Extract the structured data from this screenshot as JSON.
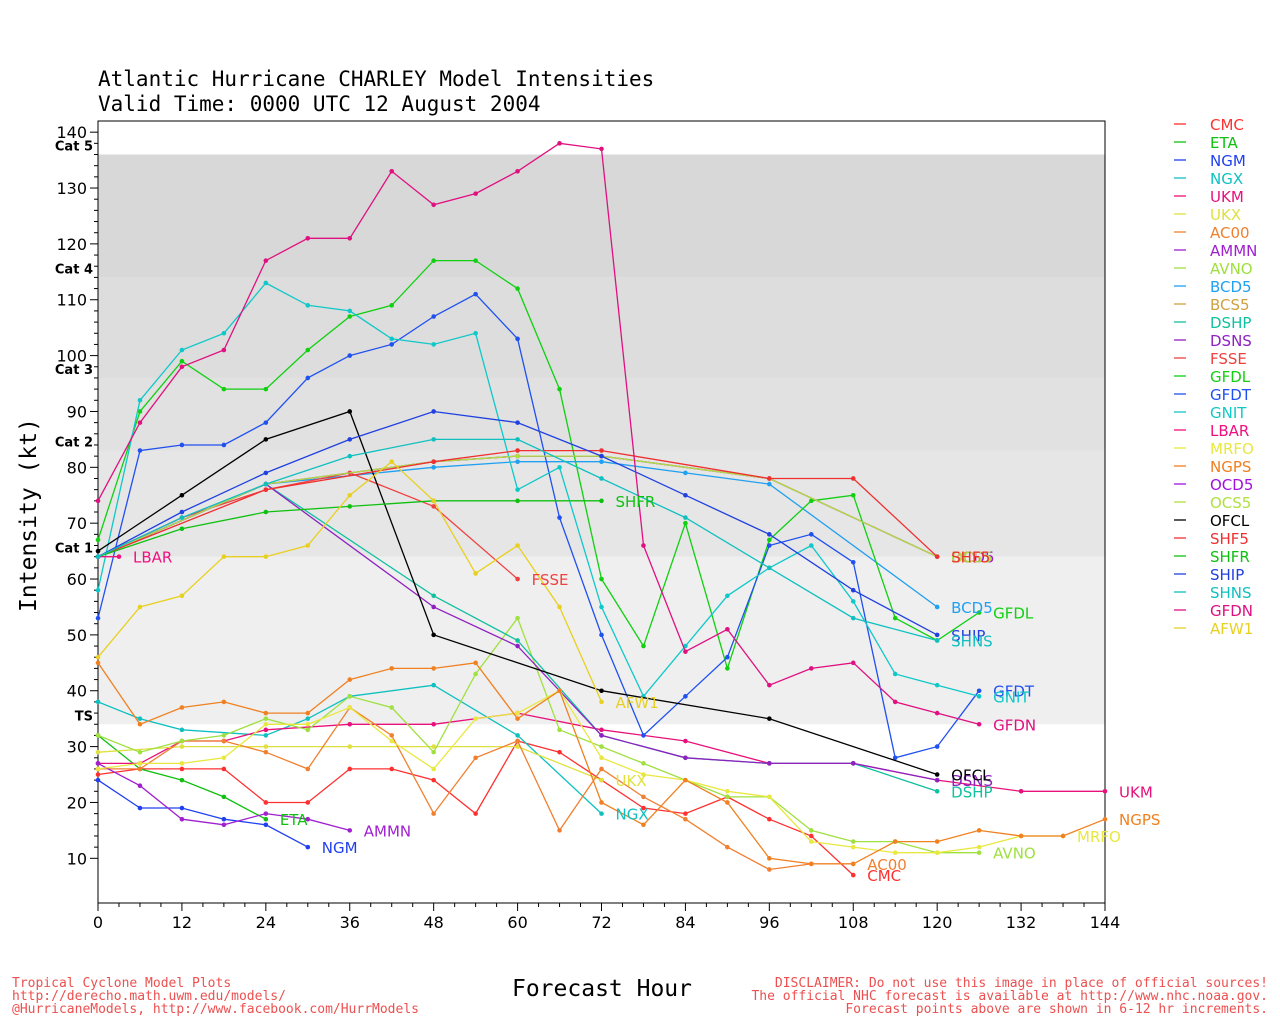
{
  "chart_data": {
    "type": "line",
    "title": "Atlantic Hurricane CHARLEY Model Intensities",
    "subtitle": "Valid Time: 0000 UTC 12 August 2004",
    "xlabel": "Forecast Hour",
    "ylabel": "Intensity (kt)",
    "xlim": [
      0,
      144
    ],
    "ylim": [
      2,
      142
    ],
    "x_ticks": [
      "0",
      "12",
      "24",
      "36",
      "48",
      "60",
      "72",
      "84",
      "96",
      "108",
      "120",
      "132",
      "144"
    ],
    "y_ticks": [
      "10",
      "20",
      "30",
      "40",
      "50",
      "60",
      "70",
      "80",
      "90",
      "100",
      "110",
      "120",
      "130",
      "140"
    ],
    "category_bands": [
      {
        "label": "TS",
        "from": 34,
        "to": 64,
        "color": "#efefef"
      },
      {
        "label": "Cat 1",
        "from": 64,
        "to": 83,
        "color": "#e6e6e6"
      },
      {
        "label": "Cat 2",
        "from": 83,
        "to": 96,
        "color": "#e1e1e1"
      },
      {
        "label": "Cat 3",
        "from": 96,
        "to": 114,
        "color": "#dddddd"
      },
      {
        "label": "Cat 4",
        "from": 114,
        "to": 136,
        "color": "#d8d8d8"
      },
      {
        "label": "Cat 5",
        "from": 136,
        "to": 142,
        "color": "#ffffff"
      }
    ],
    "legend_position": "right",
    "series": [
      {
        "name": "CMC",
        "color": "#ff3030",
        "x": [
          0,
          6,
          12,
          18,
          24,
          30,
          36,
          42,
          48,
          54,
          60,
          66,
          72,
          78,
          84,
          90,
          96,
          102,
          108
        ],
        "y": [
          25,
          26,
          26,
          26,
          20,
          20,
          26,
          26,
          24,
          18,
          31,
          29,
          24,
          19,
          18,
          21,
          17,
          14,
          7
        ],
        "end_label": "CMC"
      },
      {
        "name": "ETA",
        "color": "#10c010",
        "x": [
          0,
          6,
          12,
          18,
          24
        ],
        "y": [
          32,
          26,
          24,
          21,
          17
        ],
        "end_label": "ETA"
      },
      {
        "name": "NGM",
        "color": "#2040f0",
        "x": [
          0,
          6,
          12,
          18,
          24,
          30
        ],
        "y": [
          24,
          19,
          19,
          17,
          16,
          12
        ],
        "end_label": "NGM"
      },
      {
        "name": "NGX",
        "color": "#10c0c0",
        "x": [
          0,
          6,
          12,
          24,
          30,
          36,
          48,
          60,
          72
        ],
        "y": [
          38,
          35,
          33,
          32,
          35,
          39,
          41,
          32,
          18
        ],
        "end_label": "NGX"
      },
      {
        "name": "UKM",
        "color": "#e8107a",
        "x": [
          0,
          6,
          12,
          18,
          24,
          36,
          48,
          60,
          72,
          84,
          96,
          108,
          120,
          132,
          144
        ],
        "y": [
          27,
          27,
          31,
          31,
          33,
          34,
          34,
          36,
          33,
          31,
          27,
          27,
          24,
          22,
          22
        ],
        "end_label": "UKM"
      },
      {
        "name": "UKX",
        "color": "#e0e040",
        "x": [
          0,
          12,
          24,
          36,
          48,
          60,
          72
        ],
        "y": [
          29,
          30,
          30,
          30,
          30,
          30,
          24
        ],
        "end_label": "UKX"
      },
      {
        "name": "AC00",
        "color": "#f08030",
        "x": [
          0,
          6,
          12,
          18,
          24,
          30,
          36,
          42,
          48,
          54,
          60,
          66,
          72,
          78,
          84,
          90,
          96,
          102,
          108
        ],
        "y": [
          26,
          26,
          31,
          31,
          29,
          26,
          37,
          32,
          18,
          28,
          31,
          15,
          26,
          21,
          17,
          12,
          8,
          9,
          9
        ],
        "end_label": "AC00"
      },
      {
        "name": "AMMN",
        "color": "#a020d0",
        "x": [
          0,
          6,
          12,
          18,
          24,
          30,
          36
        ],
        "y": [
          27,
          23,
          17,
          16,
          18,
          17,
          15
        ],
        "end_label": "AMMN"
      },
      {
        "name": "AVNO",
        "color": "#a0e040",
        "x": [
          0,
          6,
          12,
          18,
          24,
          30,
          36,
          42,
          48,
          54,
          60,
          66,
          72,
          78,
          84,
          90,
          96,
          102,
          108,
          114,
          120,
          126
        ],
        "y": [
          32,
          29,
          31,
          32,
          35,
          33,
          39,
          37,
          29,
          43,
          53,
          33,
          30,
          27,
          24,
          21,
          21,
          15,
          13,
          13,
          11,
          11
        ],
        "end_label": "AVNO"
      },
      {
        "name": "BCD5",
        "color": "#20a0f0",
        "x": [
          0,
          24,
          48,
          60,
          72,
          84,
          96,
          120
        ],
        "y": [
          64,
          77,
          80,
          81,
          81,
          79,
          77,
          55
        ],
        "end_label": "BCD5"
      },
      {
        "name": "BCS5",
        "color": "#d0a040",
        "x": [
          0,
          24,
          48,
          60,
          72,
          96,
          120
        ],
        "y": [
          64,
          77,
          81,
          82,
          82,
          78,
          64
        ],
        "end_label": "BCS5"
      },
      {
        "name": "DSHP",
        "color": "#10c0a0",
        "x": [
          0,
          24,
          48,
          60,
          72,
          84,
          96,
          108,
          120
        ],
        "y": [
          64,
          77,
          57,
          49,
          32,
          28,
          27,
          27,
          22
        ],
        "end_label": "DSHP"
      },
      {
        "name": "DSNS",
        "color": "#9020c0",
        "x": [
          0,
          24,
          48,
          60,
          72,
          84,
          96,
          108,
          120
        ],
        "y": [
          64,
          77,
          55,
          48,
          32,
          28,
          27,
          27,
          24
        ],
        "end_label": "DSNS"
      },
      {
        "name": "FSSE",
        "color": "#f04040",
        "x": [
          0,
          12,
          24,
          36,
          48,
          60
        ],
        "y": [
          64,
          71,
          76,
          79,
          73,
          60
        ],
        "end_label": "FSSE"
      },
      {
        "name": "GFDL",
        "color": "#10d010",
        "x": [
          0,
          6,
          12,
          18,
          24,
          30,
          36,
          42,
          48,
          54,
          60,
          66,
          72,
          78,
          84,
          90,
          96,
          102,
          108,
          114,
          120,
          126
        ],
        "y": [
          67,
          90,
          99,
          94,
          94,
          101,
          107,
          109,
          117,
          117,
          112,
          94,
          60,
          48,
          70,
          44,
          67,
          74,
          75,
          53,
          49,
          54
        ],
        "end_label": "GFDL"
      },
      {
        "name": "GFDT",
        "color": "#2050f0",
        "x": [
          0,
          6,
          12,
          18,
          24,
          30,
          36,
          42,
          48,
          54,
          60,
          66,
          72,
          78,
          84,
          90,
          96,
          102,
          108,
          114,
          120,
          126
        ],
        "y": [
          53,
          83,
          84,
          84,
          88,
          96,
          100,
          102,
          107,
          111,
          103,
          71,
          50,
          32,
          39,
          46,
          66,
          68,
          63,
          28,
          30,
          40
        ],
        "end_label": "GFDT"
      },
      {
        "name": "GNIT",
        "color": "#10c8c8",
        "x": [
          0,
          6,
          12,
          18,
          24,
          30,
          36,
          42,
          48,
          54,
          60,
          66,
          72,
          78,
          84,
          90,
          96,
          102,
          108,
          114,
          120,
          126
        ],
        "y": [
          58,
          92,
          101,
          104,
          113,
          109,
          108,
          103,
          102,
          104,
          76,
          80,
          55,
          39,
          48,
          57,
          62,
          66,
          56,
          43,
          41,
          39
        ],
        "end_label": "GNIT"
      },
      {
        "name": "LBAR",
        "color": "#f01080",
        "x": [
          0,
          3
        ],
        "y": [
          64,
          64
        ],
        "end_label": "LBAR"
      },
      {
        "name": "MRFO",
        "color": "#e8e840",
        "x": [
          0,
          6,
          12,
          18,
          24,
          30,
          36,
          42,
          48,
          54,
          60,
          66,
          72,
          78,
          84,
          90,
          96,
          102,
          108,
          114,
          120,
          126,
          132,
          138
        ],
        "y": [
          26,
          27,
          27,
          28,
          34,
          34,
          37,
          31,
          26,
          35,
          36,
          40,
          28,
          25,
          24,
          22,
          21,
          13,
          12,
          11,
          11,
          12,
          14,
          14
        ],
        "end_label": "MRFO"
      },
      {
        "name": "NGPS",
        "color": "#f08020",
        "x": [
          0,
          6,
          12,
          18,
          24,
          30,
          36,
          42,
          48,
          54,
          60,
          66,
          72,
          78,
          84,
          90,
          96,
          102,
          108,
          114,
          120,
          126,
          132,
          138,
          144
        ],
        "y": [
          45,
          34,
          37,
          38,
          36,
          36,
          42,
          44,
          44,
          45,
          35,
          40,
          20,
          16,
          24,
          20,
          10,
          9,
          9,
          13,
          13,
          15,
          14,
          14,
          17
        ],
        "end_label": "NGPS"
      },
      {
        "name": "OCD5",
        "color": "#a010e0",
        "x": [
          0,
          24,
          48,
          60,
          72,
          96,
          120
        ],
        "y": [
          64,
          77,
          81,
          82,
          82,
          78,
          64
        ],
        "end_label": "OCD5"
      },
      {
        "name": "OCS5",
        "color": "#b0e040",
        "x": [
          0,
          24,
          48,
          60,
          72,
          96,
          120
        ],
        "y": [
          64,
          77,
          81,
          82,
          82,
          78,
          64
        ],
        "end_label": "OCS5"
      },
      {
        "name": "OFCL",
        "color": "#000000",
        "x": [
          0,
          12,
          24,
          36,
          48,
          72,
          96,
          120
        ],
        "y": [
          65,
          75,
          85,
          90,
          50,
          40,
          35,
          25
        ],
        "end_label": "OFCL"
      },
      {
        "name": "SHF5",
        "color": "#f03030",
        "x": [
          0,
          24,
          48,
          60,
          72,
          96,
          108,
          120
        ],
        "y": [
          64,
          76,
          81,
          83,
          83,
          78,
          78,
          64
        ],
        "end_label": "SHF5"
      },
      {
        "name": "SHFR",
        "color": "#10c010",
        "x": [
          0,
          12,
          24,
          36,
          48,
          60,
          72
        ],
        "y": [
          64,
          69,
          72,
          73,
          74,
          74,
          74
        ],
        "end_label": "SHFR"
      },
      {
        "name": "SHIP",
        "color": "#2040e0",
        "x": [
          0,
          12,
          24,
          36,
          48,
          60,
          72,
          84,
          96,
          108,
          120
        ],
        "y": [
          64,
          72,
          79,
          85,
          90,
          88,
          82,
          75,
          68,
          58,
          50
        ],
        "end_label": "SHIP"
      },
      {
        "name": "SHNS",
        "color": "#10c0c0",
        "x": [
          0,
          12,
          24,
          36,
          48,
          60,
          72,
          84,
          96,
          108,
          120
        ],
        "y": [
          64,
          71,
          77,
          82,
          85,
          85,
          78,
          71,
          62,
          53,
          49
        ],
        "end_label": "SHNS"
      },
      {
        "name": "GFDN",
        "color": "#e01080",
        "x": [
          0,
          6,
          12,
          18,
          24,
          30,
          36,
          42,
          48,
          54,
          60,
          66,
          72,
          78,
          84,
          90,
          96,
          102,
          108,
          114,
          120,
          126
        ],
        "y": [
          74,
          88,
          98,
          101,
          117,
          121,
          121,
          133,
          127,
          129,
          133,
          138,
          137,
          66,
          47,
          51,
          41,
          44,
          45,
          38,
          36,
          34
        ],
        "end_label": "GFDN"
      },
      {
        "name": "AFW1",
        "color": "#e8d020",
        "x": [
          0,
          6,
          12,
          18,
          24,
          30,
          36,
          42,
          48,
          54,
          60,
          66,
          72
        ],
        "y": [
          46,
          55,
          57,
          64,
          64,
          66,
          75,
          81,
          74,
          61,
          66,
          55,
          38
        ],
        "end_label": "AFW1"
      }
    ]
  },
  "footer": {
    "left_lines": [
      "Tropical Cyclone Model Plots",
      "http://derecho.math.uwm.edu/models/",
      "@HurricaneModels, http://www.facebook.com/HurrModels"
    ],
    "right_lines": [
      "DISCLAIMER: Do not use this image in place of official sources!",
      "The official NHC forecast is available at http://www.nhc.noaa.gov.",
      "Forecast points above are shown in 6-12 hr increments."
    ]
  }
}
